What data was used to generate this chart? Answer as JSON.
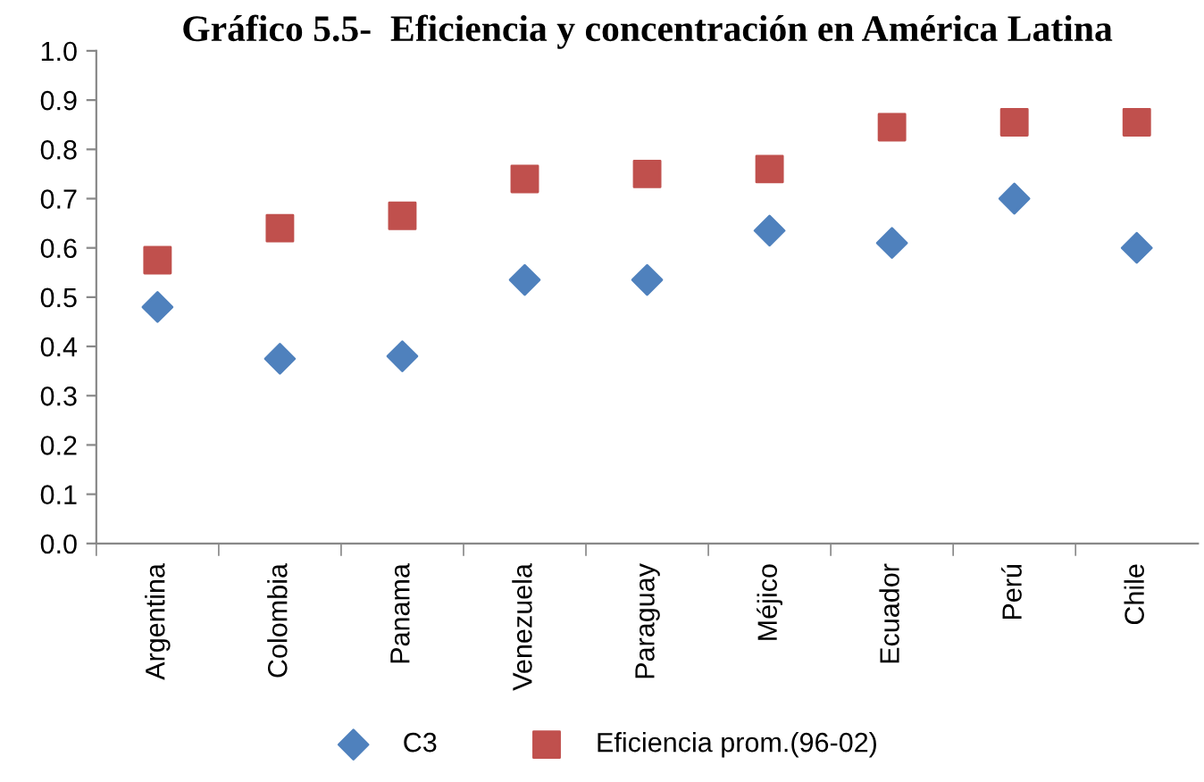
{
  "chart_data": {
    "type": "scatter",
    "title": "Gráfico 5.5-  Eficiencia y concentración en América Latina",
    "categories": [
      "Argentina",
      "Colombia",
      "Panama",
      "Venezuela",
      "Paraguay",
      "Méjico",
      "Ecuador",
      "Perú",
      "Chile"
    ],
    "series": [
      {
        "name": "C3",
        "color": "#4f81bd",
        "marker": "diamond",
        "values": [
          0.48,
          0.375,
          0.38,
          0.535,
          0.535,
          0.635,
          0.61,
          0.7,
          0.6
        ]
      },
      {
        "name": "Eficiencia prom.(96-02)",
        "color": "#c0504d",
        "marker": "square",
        "values": [
          0.575,
          0.64,
          0.665,
          0.74,
          0.75,
          0.76,
          0.845,
          0.855,
          0.855
        ]
      }
    ],
    "ylim": [
      0,
      1.0
    ],
    "yticks": [
      {
        "value": 0,
        "label": "0.0"
      },
      {
        "value": 0.1,
        "label": "0.1"
      },
      {
        "value": 0.2,
        "label": "0.2"
      },
      {
        "value": 0.3,
        "label": "0.3"
      },
      {
        "value": 0.4,
        "label": "0.4"
      },
      {
        "value": 0.5,
        "label": "0.5"
      },
      {
        "value": 0.6,
        "label": "0.6"
      },
      {
        "value": 0.7,
        "label": "0.7"
      },
      {
        "value": 0.8,
        "label": "0.8"
      },
      {
        "value": 0.9,
        "label": "0.9"
      },
      {
        "value": 1.0,
        "label": "1.0"
      }
    ],
    "grid": false,
    "legend": "bottom"
  }
}
